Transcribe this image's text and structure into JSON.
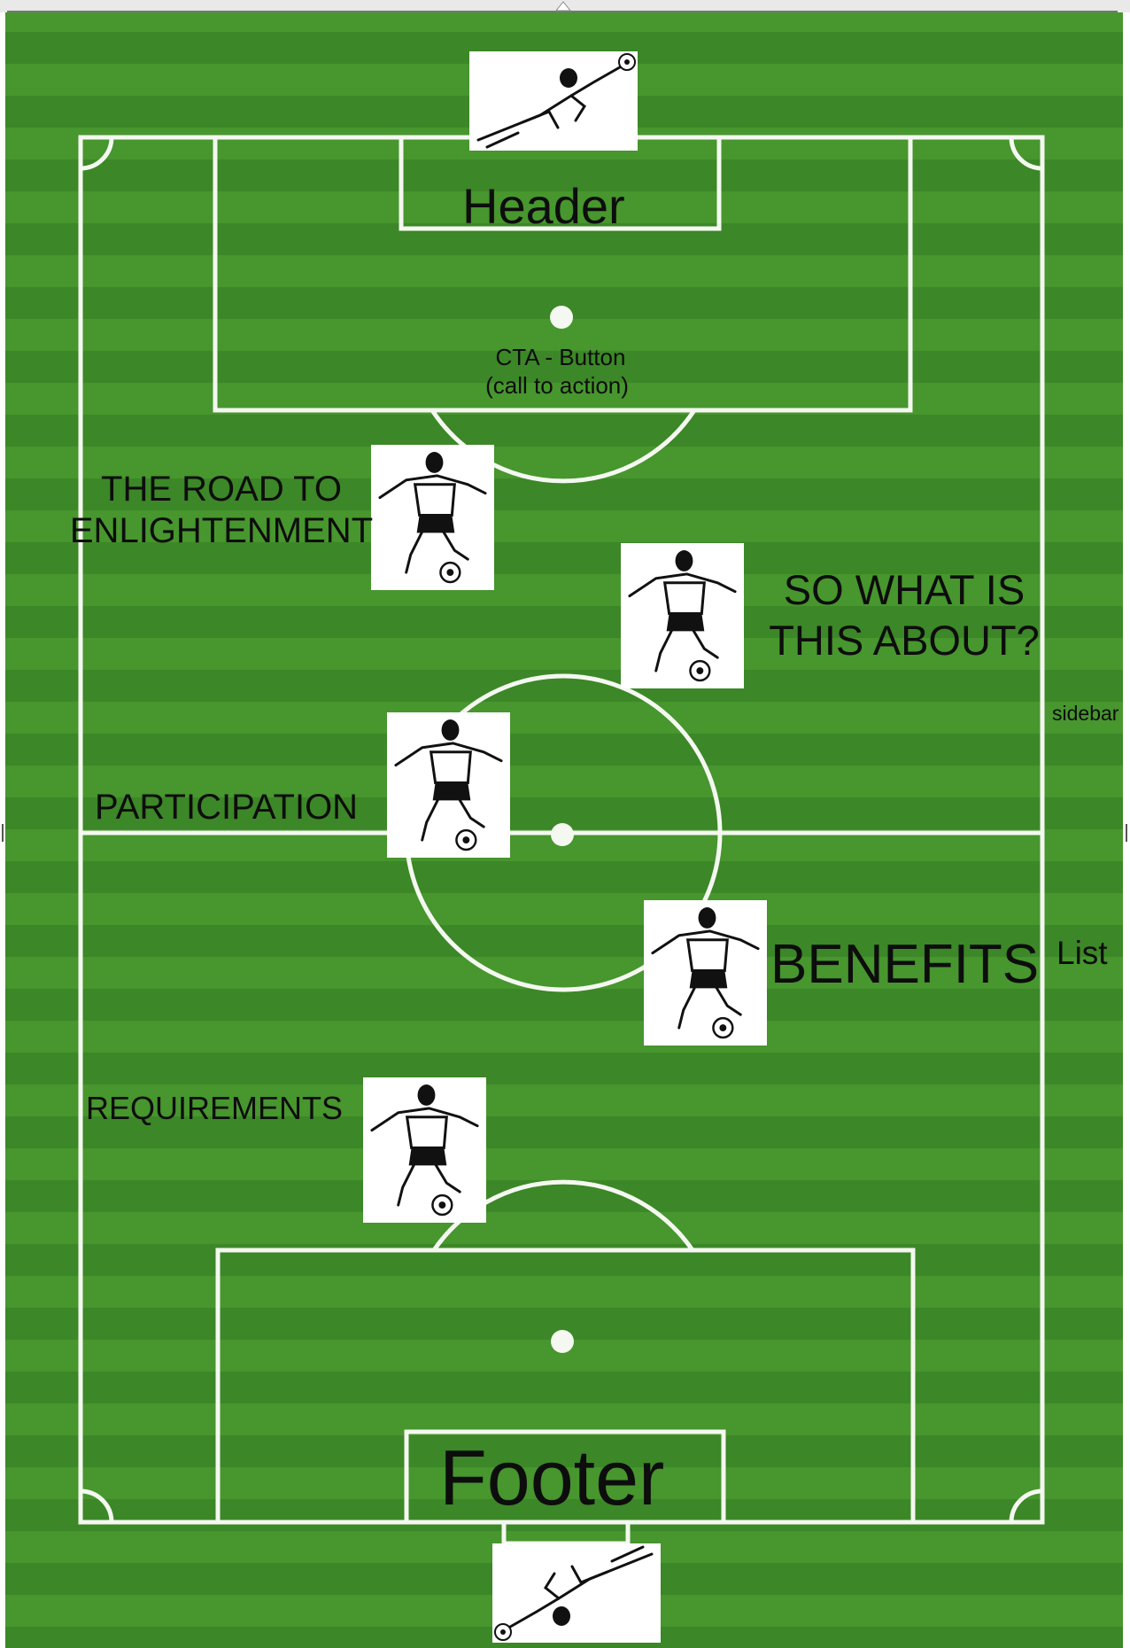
{
  "diagram": {
    "header_label": "Header",
    "cta_label_line1": "CTA - Button",
    "cta_label_line2": "(call to action)",
    "section_road_line1": "THE ROAD TO",
    "section_road_line2": "ENLIGHTENMENT",
    "section_about_line1": "SO WHAT IS",
    "section_about_line2": "THIS ABOUT?",
    "sidebar_label": "sidebar",
    "section_participation": "PARTICIPATION",
    "section_benefits": "BENEFITS",
    "list_label": "List",
    "section_requirements": "REQUIREMENTS",
    "footer_label": "Footer"
  },
  "icons": {
    "goalkeeper_top": "goalkeeper-diving-icon",
    "goalkeeper_bottom": "goalkeeper-diving-icon",
    "kicker": "soccer-player-kicking-icon",
    "ball": "soccer-ball-icon"
  },
  "colors": {
    "pitch_dark": "#3e8a28",
    "pitch_light": "#4a9a30",
    "pitch_line": "#f4f8f0",
    "text": "#0d0d0d"
  }
}
